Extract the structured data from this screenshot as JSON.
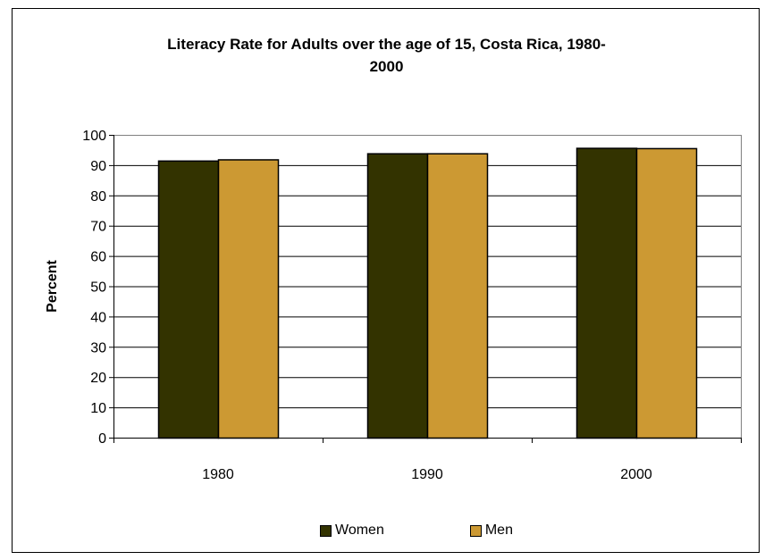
{
  "chart_data": {
    "type": "bar",
    "title_lines": [
      "Literacy Rate for Adults over the age of 15, Costa Rica, 1980-",
      "2000"
    ],
    "xlabel": "",
    "ylabel": "Percent",
    "categories": [
      "1980",
      "1990",
      "2000"
    ],
    "series": [
      {
        "name": "Women",
        "values": [
          91.5,
          93.9,
          95.7
        ],
        "color": "#333300"
      },
      {
        "name": "Men",
        "values": [
          91.9,
          93.9,
          95.6
        ],
        "color": "#CC9933"
      }
    ],
    "ylim": [
      0,
      100
    ],
    "yticks": [
      "0",
      "10",
      "20",
      "30",
      "40",
      "50",
      "60",
      "70",
      "80",
      "90",
      "100"
    ],
    "grid": true,
    "legend_position": "bottom"
  }
}
